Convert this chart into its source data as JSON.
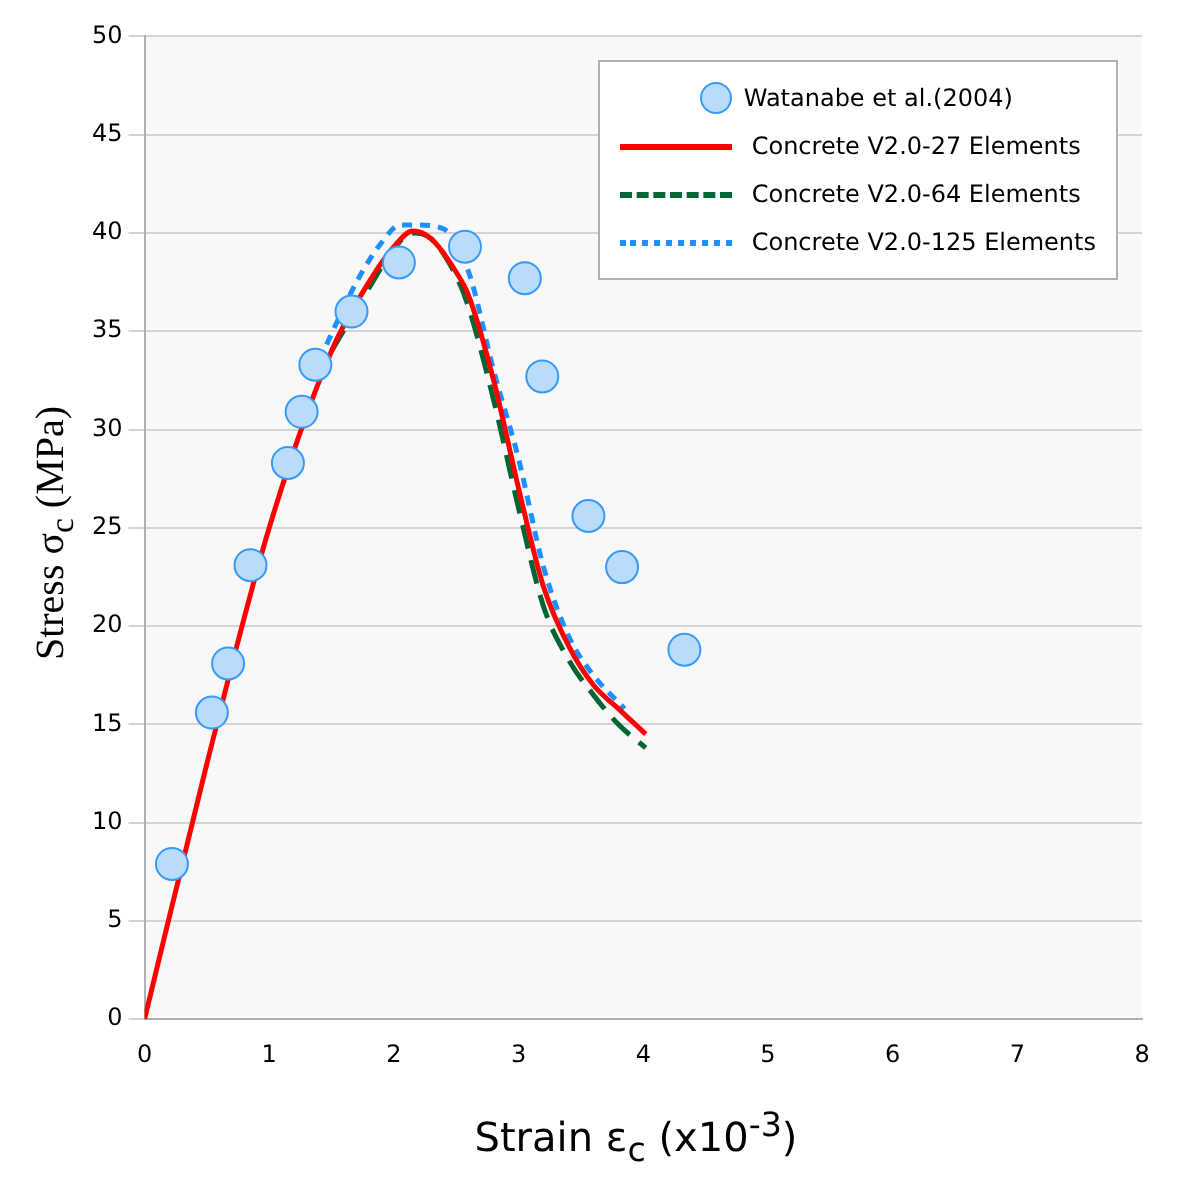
{
  "chart_data": {
    "type": "line",
    "xlabel": "Strain ε$_{c}$ (x10$^{-3}$)",
    "ylabel": "Stress σ$_{c}$ (MPa)",
    "xlim": [
      0,
      8
    ],
    "xticks": [
      0,
      1,
      2,
      3,
      4,
      5,
      6,
      7,
      8
    ],
    "ylim": [
      0,
      50
    ],
    "yticks": [
      0,
      5,
      10,
      15,
      20,
      25,
      30,
      35,
      40,
      45,
      50
    ],
    "grid": "y",
    "legend": "top right",
    "series": [
      {
        "name": "Watanabe et al.(2004)",
        "type": "scatter",
        "marker": "circle",
        "color": "#b8dcfa",
        "x": [
          0.22,
          0.54,
          0.67,
          0.85,
          1.15,
          1.26,
          1.37,
          1.66,
          2.04,
          2.57,
          3.05,
          3.19,
          3.56,
          3.83,
          4.33
        ],
        "values": [
          7.9,
          15.6,
          18.1,
          23.1,
          28.3,
          30.9,
          33.3,
          36.0,
          38.5,
          39.3,
          37.7,
          32.7,
          25.6,
          23.0,
          18.8
        ]
      },
      {
        "name": "Concrete V2.0-27 Elements",
        "line_style": "solid",
        "color": "#ff0000",
        "x": [
          0,
          0.5,
          1,
          1.5,
          1.8,
          2.0,
          2.15,
          2.3,
          2.5,
          2.6,
          2.8,
          3.0,
          3.2,
          3.4,
          3.6,
          3.8,
          4.02
        ],
        "values": [
          0,
          13,
          25,
          34,
          37.5,
          39.3,
          40.1,
          39.7,
          38.0,
          36.8,
          32.5,
          27,
          22,
          19,
          17,
          15.8,
          14.5
        ]
      },
      {
        "name": "Concrete V2.0-64 Elements",
        "line_style": "dashed",
        "color": "#006633",
        "x": [
          1.5,
          1.8,
          2.0,
          2.15,
          2.3,
          2.5,
          2.6,
          2.8,
          3.0,
          3.2,
          3.4,
          3.6,
          3.8,
          4.02
        ],
        "values": [
          34,
          37.2,
          39.2,
          40.0,
          39.7,
          37.8,
          36.2,
          31.5,
          26,
          21,
          18.3,
          16.5,
          15,
          13.8
        ]
      },
      {
        "name": "Concrete V2.0-125 Elements",
        "line_style": "dotted",
        "color": "#1e90ff",
        "x": [
          1.4,
          1.7,
          1.9,
          2.05,
          2.2,
          2.4,
          2.6,
          2.8,
          3.0,
          3.2,
          3.4,
          3.6,
          3.85
        ],
        "values": [
          33.5,
          37.5,
          39.5,
          40.4,
          40.4,
          40.2,
          38,
          33,
          28.5,
          23,
          19.5,
          17.5,
          15.8
        ]
      }
    ]
  }
}
